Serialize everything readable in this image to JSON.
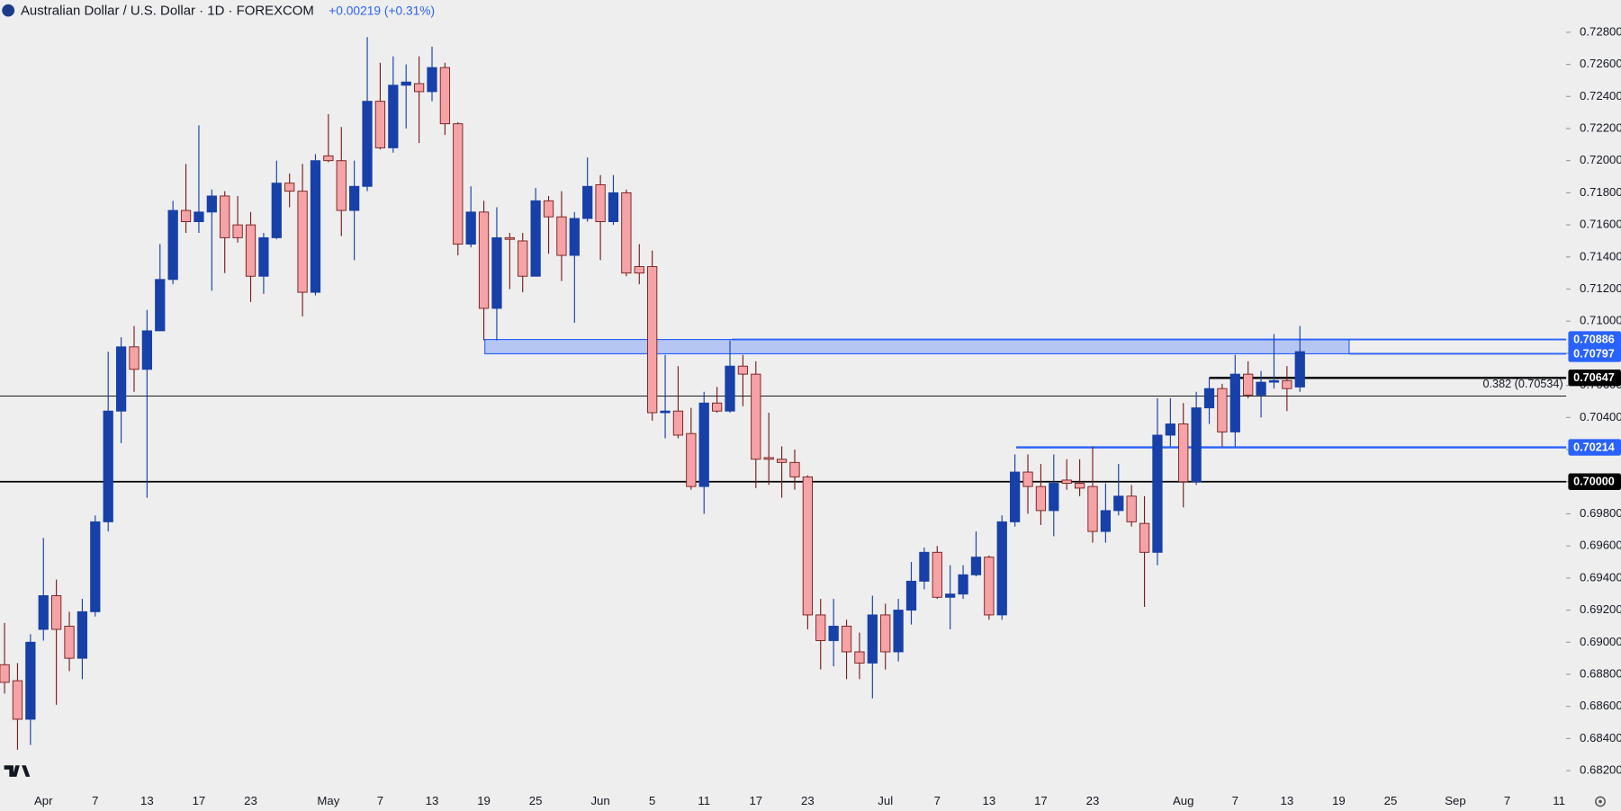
{
  "chart_data": {
    "type": "candlestick",
    "title": "Australian Dollar / U.S. Dollar · 1D · FOREXCOM",
    "change": "+0.00219 (+0.31%)",
    "up_color": "#1740a8",
    "down_color": "#f5a3a6",
    "down_border": "#7a1c1c",
    "ylim": [
      0.681,
      0.73
    ],
    "yticks": [
      {
        "value": 0.682,
        "label": "0.68200"
      },
      {
        "value": 0.684,
        "label": "0.68400"
      },
      {
        "value": 0.686,
        "label": "0.68600"
      },
      {
        "value": 0.688,
        "label": "0.68800"
      },
      {
        "value": 0.69,
        "label": "0.69000"
      },
      {
        "value": 0.692,
        "label": "0.69200"
      },
      {
        "value": 0.694,
        "label": "0.69400"
      },
      {
        "value": 0.696,
        "label": "0.69600"
      },
      {
        "value": 0.698,
        "label": "0.69800"
      },
      {
        "value": 0.7,
        "label": "0.70000"
      },
      {
        "value": 0.702,
        "label": "0.70200"
      },
      {
        "value": 0.704,
        "label": "0.70400"
      },
      {
        "value": 0.706,
        "label": "0.70600"
      },
      {
        "value": 0.708,
        "label": "0.70800"
      },
      {
        "value": 0.71,
        "label": "0.71000"
      },
      {
        "value": 0.712,
        "label": "0.71200"
      },
      {
        "value": 0.714,
        "label": "0.71400"
      },
      {
        "value": 0.716,
        "label": "0.71600"
      },
      {
        "value": 0.718,
        "label": "0.71800"
      },
      {
        "value": 0.72,
        "label": "0.72000"
      },
      {
        "value": 0.722,
        "label": "0.72200"
      },
      {
        "value": 0.724,
        "label": "0.72400"
      },
      {
        "value": 0.726,
        "label": "0.72600"
      },
      {
        "value": 0.728,
        "label": "0.72800"
      }
    ],
    "categories": [
      null,
      null,
      null,
      "Apr",
      null,
      null,
      null,
      "7",
      null,
      null,
      null,
      "13",
      null,
      null,
      null,
      "17",
      null,
      null,
      null,
      "23",
      null,
      null,
      null,
      null,
      null,
      "May",
      null,
      null,
      null,
      "7",
      null,
      null,
      null,
      "13",
      null,
      null,
      null,
      "19",
      null,
      null,
      null,
      "25",
      null,
      null,
      null,
      null,
      "Jun",
      null,
      null,
      null,
      "5",
      null,
      null,
      null,
      "11",
      null,
      null,
      null,
      "17",
      null,
      null,
      null,
      "23",
      null,
      null,
      null,
      null,
      null,
      "Jul",
      null,
      null,
      null,
      "7",
      null,
      null,
      null,
      "13",
      null,
      null,
      null,
      "17",
      null,
      null,
      null,
      "23",
      null,
      null,
      null,
      null,
      null,
      null,
      "Aug",
      null,
      null,
      null,
      "7",
      null,
      null,
      null,
      "13",
      null,
      null,
      null,
      "19",
      null,
      null,
      null,
      "25",
      null,
      null,
      null,
      null,
      "Sep",
      null,
      null,
      null,
      "7",
      null,
      null,
      null,
      "11"
    ],
    "open": [
      0.6886,
      0.6876,
      0.6852,
      0.6908,
      0.6929,
      0.691,
      0.689,
      0.6919,
      0.6975,
      0.7044,
      0.7084,
      0.707,
      0.7094,
      0.7126,
      0.7169,
      0.7162,
      0.7168,
      0.7178,
      0.716,
      0.716,
      0.7128,
      0.7152,
      0.7186,
      0.7181,
      0.7118,
      0.7203,
      0.72,
      0.7169,
      0.7184,
      0.7237,
      0.7208,
      0.7247,
      0.7248,
      0.7243,
      0.7258,
      0.7223,
      0.7148,
      0.7168,
      0.7108,
      0.7152,
      0.715,
      0.7128,
      0.7175,
      0.7165,
      0.7141,
      0.7164,
      0.7185,
      0.7162,
      0.718,
      0.7134,
      0.7134,
      0.7043,
      0.7044,
      0.703,
      0.6997,
      0.7049,
      0.7044,
      0.7072,
      0.7067,
      0.7015,
      0.7014,
      0.7012,
      0.7003,
      0.6917,
      0.6901,
      0.691,
      0.6894,
      0.6887,
      0.6917,
      0.6894,
      0.692,
      0.6938,
      0.6956,
      0.6928,
      0.693,
      0.6942,
      0.6953,
      0.6917,
      0.6975,
      0.7006,
      0.6997,
      0.6982,
      0.7001,
      0.6999,
      0.6997,
      0.6969,
      0.6982,
      0.6991,
      0.6974,
      0.6956,
      0.7029,
      0.7036,
      0.7,
      0.7046,
      0.7058,
      0.7031,
      0.7067,
      0.7054,
      0.7062,
      0.7063,
      0.7059,
      null,
      null,
      null,
      null,
      null,
      null,
      null,
      null,
      null,
      null,
      null,
      null,
      null,
      null,
      null,
      null,
      null,
      null,
      null,
      null
    ],
    "high": [
      0.6912,
      0.6887,
      0.6905,
      0.6965,
      0.6939,
      0.6919,
      0.6927,
      0.6979,
      0.7081,
      0.709,
      0.7097,
      0.7107,
      0.7148,
      0.7175,
      0.7198,
      0.7222,
      0.7182,
      0.7181,
      0.7178,
      0.7168,
      0.7155,
      0.72,
      0.7192,
      0.7198,
      0.7204,
      0.7229,
      0.7221,
      0.72,
      0.7277,
      0.7261,
      0.7265,
      0.726,
      0.7265,
      0.7271,
      0.7261,
      0.7224,
      0.7184,
      0.7175,
      0.7171,
      0.7155,
      0.7155,
      0.7183,
      0.7178,
      0.7181,
      0.7168,
      0.7202,
      0.7191,
      0.7191,
      0.7182,
      0.7148,
      0.7144,
      0.7079,
      0.7072,
      0.7046,
      0.7056,
      0.7059,
      0.7088,
      0.7079,
      0.7075,
      0.7043,
      0.7022,
      0.702,
      0.7004,
      0.6927,
      0.6927,
      0.6914,
      0.6906,
      0.6929,
      0.6924,
      0.6927,
      0.695,
      0.6959,
      0.696,
      0.6948,
      0.6948,
      0.6969,
      0.6954,
      0.6979,
      0.7017,
      0.7017,
      0.7011,
      0.7017,
      0.7014,
      0.7014,
      0.7022,
      0.6999,
      0.7011,
      0.6998,
      0.6991,
      0.7052,
      0.7052,
      0.7049,
      0.7056,
      0.7065,
      0.7061,
      0.7079,
      0.7075,
      0.7069,
      0.7092,
      0.7072,
      0.7097,
      null,
      null,
      null,
      null,
      null,
      null,
      null,
      null,
      null,
      null,
      null,
      null,
      null,
      null,
      null,
      null,
      null,
      null,
      null,
      null
    ],
    "low": [
      0.6868,
      0.6833,
      0.6836,
      0.6901,
      0.6861,
      0.6882,
      0.6877,
      0.6916,
      0.6969,
      0.7024,
      0.7056,
      0.699,
      0.7094,
      0.7123,
      0.7155,
      0.7155,
      0.7119,
      0.713,
      0.7149,
      0.7112,
      0.7117,
      0.7151,
      0.7171,
      0.7103,
      0.7116,
      0.7199,
      0.7153,
      0.7138,
      0.7181,
      0.7207,
      0.7205,
      0.722,
      0.7211,
      0.7237,
      0.7216,
      0.7141,
      0.7146,
      0.7088,
      0.7088,
      0.712,
      0.7118,
      0.7128,
      0.7142,
      0.7125,
      0.7099,
      0.7162,
      0.7138,
      0.716,
      0.7128,
      0.7123,
      0.7038,
      0.7027,
      0.7027,
      0.6995,
      0.698,
      0.7043,
      0.7043,
      0.7047,
      0.6996,
      0.6998,
      0.699,
      0.6995,
      0.6908,
      0.6883,
      0.6885,
      0.6877,
      0.6877,
      0.6865,
      0.6883,
      0.6888,
      0.6911,
      0.6933,
      0.6927,
      0.6908,
      0.6927,
      0.6941,
      0.6914,
      0.6914,
      0.6972,
      0.698,
      0.6973,
      0.6966,
      0.6995,
      0.6991,
      0.6962,
      0.6962,
      0.6979,
      0.6972,
      0.6922,
      0.6948,
      0.7022,
      0.6984,
      0.6998,
      0.7036,
      0.7022,
      0.7022,
      0.7052,
      0.704,
      0.7058,
      0.7044,
      0.7056,
      null,
      null,
      null,
      null,
      null,
      null,
      null,
      null,
      null,
      null,
      null,
      null,
      null,
      null,
      null,
      null,
      null,
      null,
      null,
      null
    ],
    "close": [
      0.6875,
      0.6852,
      0.69,
      0.6929,
      0.6908,
      0.689,
      0.6919,
      0.6975,
      0.7044,
      0.7084,
      0.707,
      0.7094,
      0.7126,
      0.7169,
      0.7162,
      0.7168,
      0.7178,
      0.7152,
      0.7152,
      0.7128,
      0.7152,
      0.7186,
      0.7181,
      0.7118,
      0.72,
      0.72,
      0.7169,
      0.7184,
      0.7237,
      0.7208,
      0.7247,
      0.7249,
      0.7243,
      0.7258,
      0.7223,
      0.7148,
      0.7168,
      0.7108,
      0.7152,
      0.7151,
      0.7128,
      0.7175,
      0.7165,
      0.7141,
      0.7164,
      0.7184,
      0.7162,
      0.718,
      0.713,
      0.713,
      0.7043,
      0.7044,
      0.7029,
      0.6997,
      0.7049,
      0.7044,
      0.7072,
      0.7067,
      0.7014,
      0.7014,
      0.7012,
      0.7003,
      0.6917,
      0.6901,
      0.691,
      0.6894,
      0.6887,
      0.6917,
      0.6894,
      0.692,
      0.6938,
      0.6956,
      0.6928,
      0.693,
      0.6942,
      0.6953,
      0.6917,
      0.6975,
      0.7006,
      0.6997,
      0.6982,
      0.6999,
      0.6999,
      0.6996,
      0.6969,
      0.6982,
      0.6991,
      0.6975,
      0.6956,
      0.7029,
      0.7036,
      0.7,
      0.7046,
      0.7058,
      0.7031,
      0.7067,
      0.7054,
      0.7062,
      0.7063,
      0.7058,
      0.7081,
      null,
      null,
      null,
      null,
      null,
      null,
      null,
      null,
      null,
      null,
      null,
      null,
      null,
      null,
      null,
      null,
      null,
      null,
      null,
      null
    ],
    "levels": [
      {
        "value": 0.70886,
        "label": "0.70886",
        "color": "#2962ff"
      },
      {
        "value": 0.70797,
        "label": "0.70797",
        "color": "#2962ff"
      },
      {
        "value": 0.70647,
        "label": "0.70647",
        "color": "#000000"
      },
      {
        "value": 0.70214,
        "label": "0.70214",
        "color": "#2962ff"
      },
      {
        "value": 0.7,
        "label": "0.70000",
        "color": "#000000"
      }
    ],
    "fib": {
      "value": 0.70534,
      "label": "0.382 (0.70534)"
    }
  }
}
